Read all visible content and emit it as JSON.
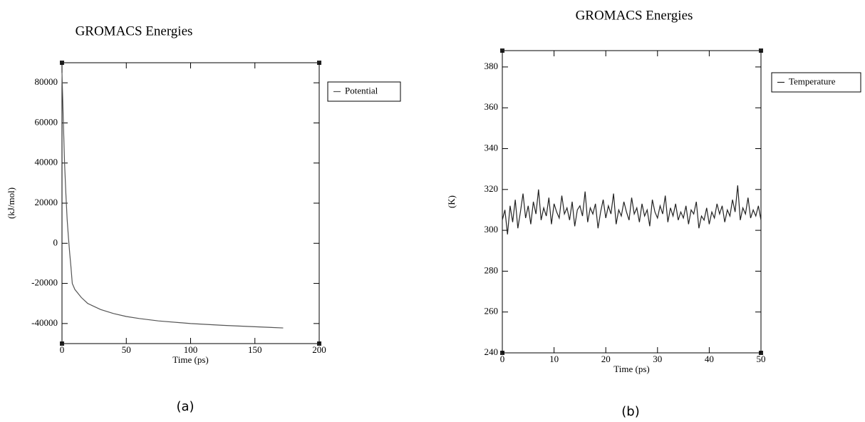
{
  "chart_data": [
    {
      "type": "line",
      "title": "GROMACS Energies",
      "x_label": "Time (ps)",
      "y_label": "(kJ/mol)",
      "caption": "(a)",
      "x": [
        0,
        1,
        2,
        3,
        4,
        5,
        6,
        7,
        8,
        10,
        15,
        20,
        30,
        40,
        50,
        60,
        75,
        100,
        125,
        150,
        172
      ],
      "series": [
        {
          "name": "Potential",
          "color": "#555555",
          "values": [
            85000,
            62000,
            40000,
            25000,
            12000,
            3000,
            -5000,
            -12000,
            -20000,
            -23000,
            -27000,
            -30000,
            -33000,
            -35000,
            -36500,
            -37500,
            -38700,
            -40000,
            -40900,
            -41600,
            -42200
          ]
        }
      ],
      "xlim": [
        0,
        200
      ],
      "xticks": [
        0,
        50,
        100,
        150,
        200
      ],
      "ylim": [
        -50000,
        90000
      ],
      "yticks": [
        -40000,
        -20000,
        0,
        20000,
        40000,
        60000,
        80000
      ],
      "legend": "outside right"
    },
    {
      "type": "line",
      "title": "GROMACS Energies",
      "x_label": "Time (ps)",
      "y_label": "(K)",
      "caption": "(b)",
      "x": [
        0,
        0.5,
        1,
        1.5,
        2,
        2.5,
        3,
        3.5,
        4,
        4.5,
        5,
        5.5,
        6,
        6.5,
        7,
        7.5,
        8,
        8.5,
        9,
        9.5,
        10,
        10.5,
        11,
        11.5,
        12,
        12.5,
        13,
        13.5,
        14,
        14.5,
        15,
        15.5,
        16,
        16.5,
        17,
        17.5,
        18,
        18.5,
        19,
        19.5,
        20,
        20.5,
        21,
        21.5,
        22,
        22.5,
        23,
        23.5,
        24,
        24.5,
        25,
        25.5,
        26,
        26.5,
        27,
        27.5,
        28,
        28.5,
        29,
        29.5,
        30,
        30.5,
        31,
        31.5,
        32,
        32.5,
        33,
        33.5,
        34,
        34.5,
        35,
        35.5,
        36,
        36.5,
        37,
        37.5,
        38,
        38.5,
        39,
        39.5,
        40,
        40.5,
        41,
        41.5,
        42,
        42.5,
        43,
        43.5,
        44,
        44.5,
        45,
        45.5,
        46,
        46.5,
        47,
        47.5,
        48,
        48.5,
        49,
        49.5,
        50
      ],
      "series": [
        {
          "name": "Temperature",
          "color": "#222222",
          "values": [
            305,
            310,
            298,
            312,
            304,
            315,
            301,
            309,
            318,
            306,
            312,
            303,
            314,
            308,
            320,
            305,
            311,
            307,
            316,
            303,
            313,
            309,
            306,
            317,
            308,
            311,
            305,
            314,
            302,
            310,
            312,
            307,
            319,
            304,
            311,
            308,
            313,
            301,
            309,
            315,
            306,
            312,
            308,
            318,
            303,
            310,
            307,
            314,
            309,
            305,
            316,
            308,
            311,
            304,
            313,
            307,
            310,
            302,
            315,
            309,
            306,
            312,
            308,
            317,
            304,
            311,
            307,
            313,
            305,
            309,
            306,
            312,
            303,
            310,
            308,
            314,
            301,
            307,
            305,
            311,
            303,
            309,
            306,
            313,
            308,
            312,
            304,
            310,
            307,
            315,
            309,
            322,
            305,
            311,
            308,
            316,
            306,
            310,
            307,
            312,
            305
          ]
        }
      ],
      "xlim": [
        0,
        50
      ],
      "xticks": [
        0,
        10,
        20,
        30,
        40,
        50
      ],
      "ylim": [
        240,
        388
      ],
      "yticks": [
        240,
        260,
        280,
        300,
        320,
        340,
        360,
        380
      ],
      "legend": "outside right"
    }
  ]
}
